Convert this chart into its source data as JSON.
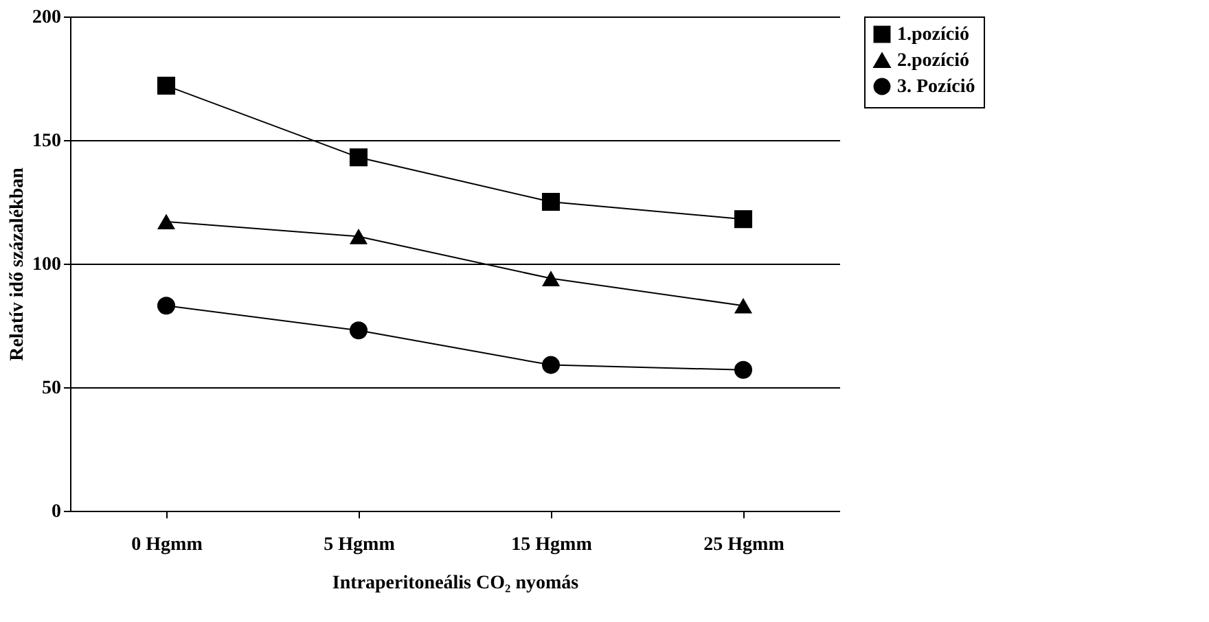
{
  "chart_data": {
    "type": "line",
    "xlabel": "Intraperitoneális CO₂ nyomás",
    "ylabel": "Relatív idő százalékban",
    "categories": [
      "0 Hgmm",
      "5 Hgmm",
      "15 Hgmm",
      "25 Hgmm"
    ],
    "series": [
      {
        "name": "1.pozíció",
        "color": "#000000",
        "marker": "square",
        "values": [
          172,
          143,
          125,
          118
        ]
      },
      {
        "name": "2.pozíció",
        "color": "#000000",
        "marker": "triangle",
        "values": [
          117,
          111,
          94,
          83
        ]
      },
      {
        "name": "3. Pozíció",
        "color": "#000000",
        "marker": "circle",
        "values": [
          83,
          73,
          59,
          57
        ]
      }
    ],
    "ylim": [
      0,
      200
    ],
    "yticks": [
      0,
      50,
      100,
      150,
      200
    ],
    "grid": "y",
    "legend": "right",
    "line_style": "solid"
  }
}
